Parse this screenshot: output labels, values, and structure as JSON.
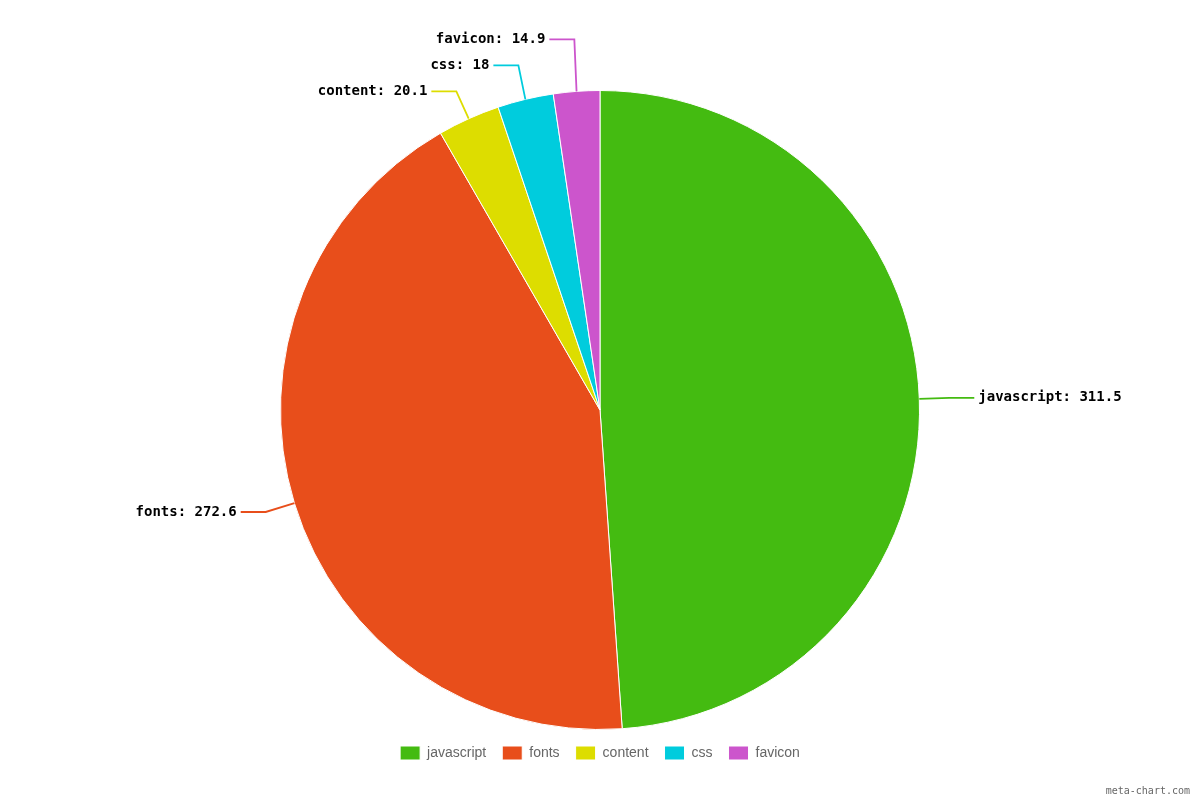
{
  "chart_data": {
    "type": "pie",
    "categories": [
      "javascript",
      "fonts",
      "content",
      "css",
      "favicon"
    ],
    "values": [
      311.5,
      272.6,
      20.1,
      18.0,
      14.9
    ],
    "colors": [
      "#44bb11",
      "#e84e1b",
      "#dddd00",
      "#00ccdd",
      "#cc55cc"
    ],
    "data_labels": true,
    "value_labels": [
      "javascript: 311.5",
      "fonts: 272.6",
      "content: 20.1",
      "css: 18",
      "favicon: 14.9"
    ],
    "legend": "bottom",
    "annotations": [
      "meta-chart.com"
    ]
  }
}
